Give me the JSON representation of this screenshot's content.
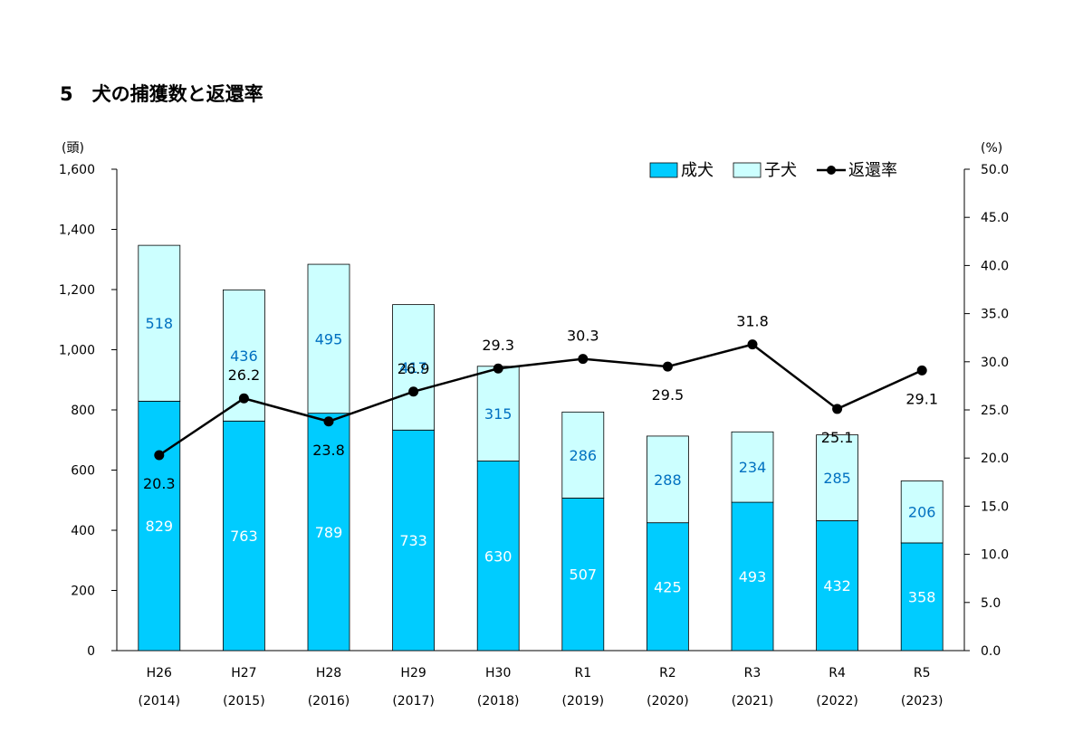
{
  "chart_data": {
    "type": "bar",
    "title": "5　犬の捕獲数と返還率",
    "y_left_unit": "(頭)",
    "y_right_unit": "(%)",
    "categories": [
      "H26",
      "H27",
      "H28",
      "H29",
      "H30",
      "R1",
      "R2",
      "R3",
      "R4",
      "R5"
    ],
    "category_years": [
      "(2014)",
      "(2015)",
      "(2016)",
      "(2017)",
      "(2018)",
      "(2019)",
      "(2020)",
      "(2021)",
      "(2022)",
      "(2023)"
    ],
    "stacked": true,
    "series": [
      {
        "name": "成犬",
        "type": "bar",
        "axis": "left",
        "color": "#00CCFF",
        "values": [
          829,
          763,
          789,
          733,
          630,
          507,
          425,
          493,
          432,
          358
        ]
      },
      {
        "name": "子犬",
        "type": "bar",
        "axis": "left",
        "color": "#CCFFFF",
        "values": [
          518,
          436,
          495,
          417,
          315,
          286,
          288,
          234,
          285,
          206
        ]
      },
      {
        "name": "返還率",
        "type": "line",
        "axis": "right",
        "color": "#000000",
        "values": [
          20.3,
          26.2,
          23.8,
          26.9,
          29.3,
          30.3,
          29.5,
          31.8,
          25.1,
          29.1
        ]
      }
    ],
    "ylim_left": [
      0,
      1600
    ],
    "ylim_right": [
      0,
      50
    ],
    "y_left_ticks": [
      "0",
      "200",
      "400",
      "600",
      "800",
      "1,000",
      "1,200",
      "1,400",
      "1,600"
    ],
    "y_right_ticks": [
      "0.0",
      "5.0",
      "10.0",
      "15.0",
      "20.0",
      "25.0",
      "30.0",
      "35.0",
      "40.0",
      "45.0",
      "50.0"
    ],
    "grid": false,
    "legend_position": "top-right",
    "label_colors": {
      "adult": "#FFFFFF",
      "puppy": "#0070C0",
      "rate": "#000000"
    }
  }
}
